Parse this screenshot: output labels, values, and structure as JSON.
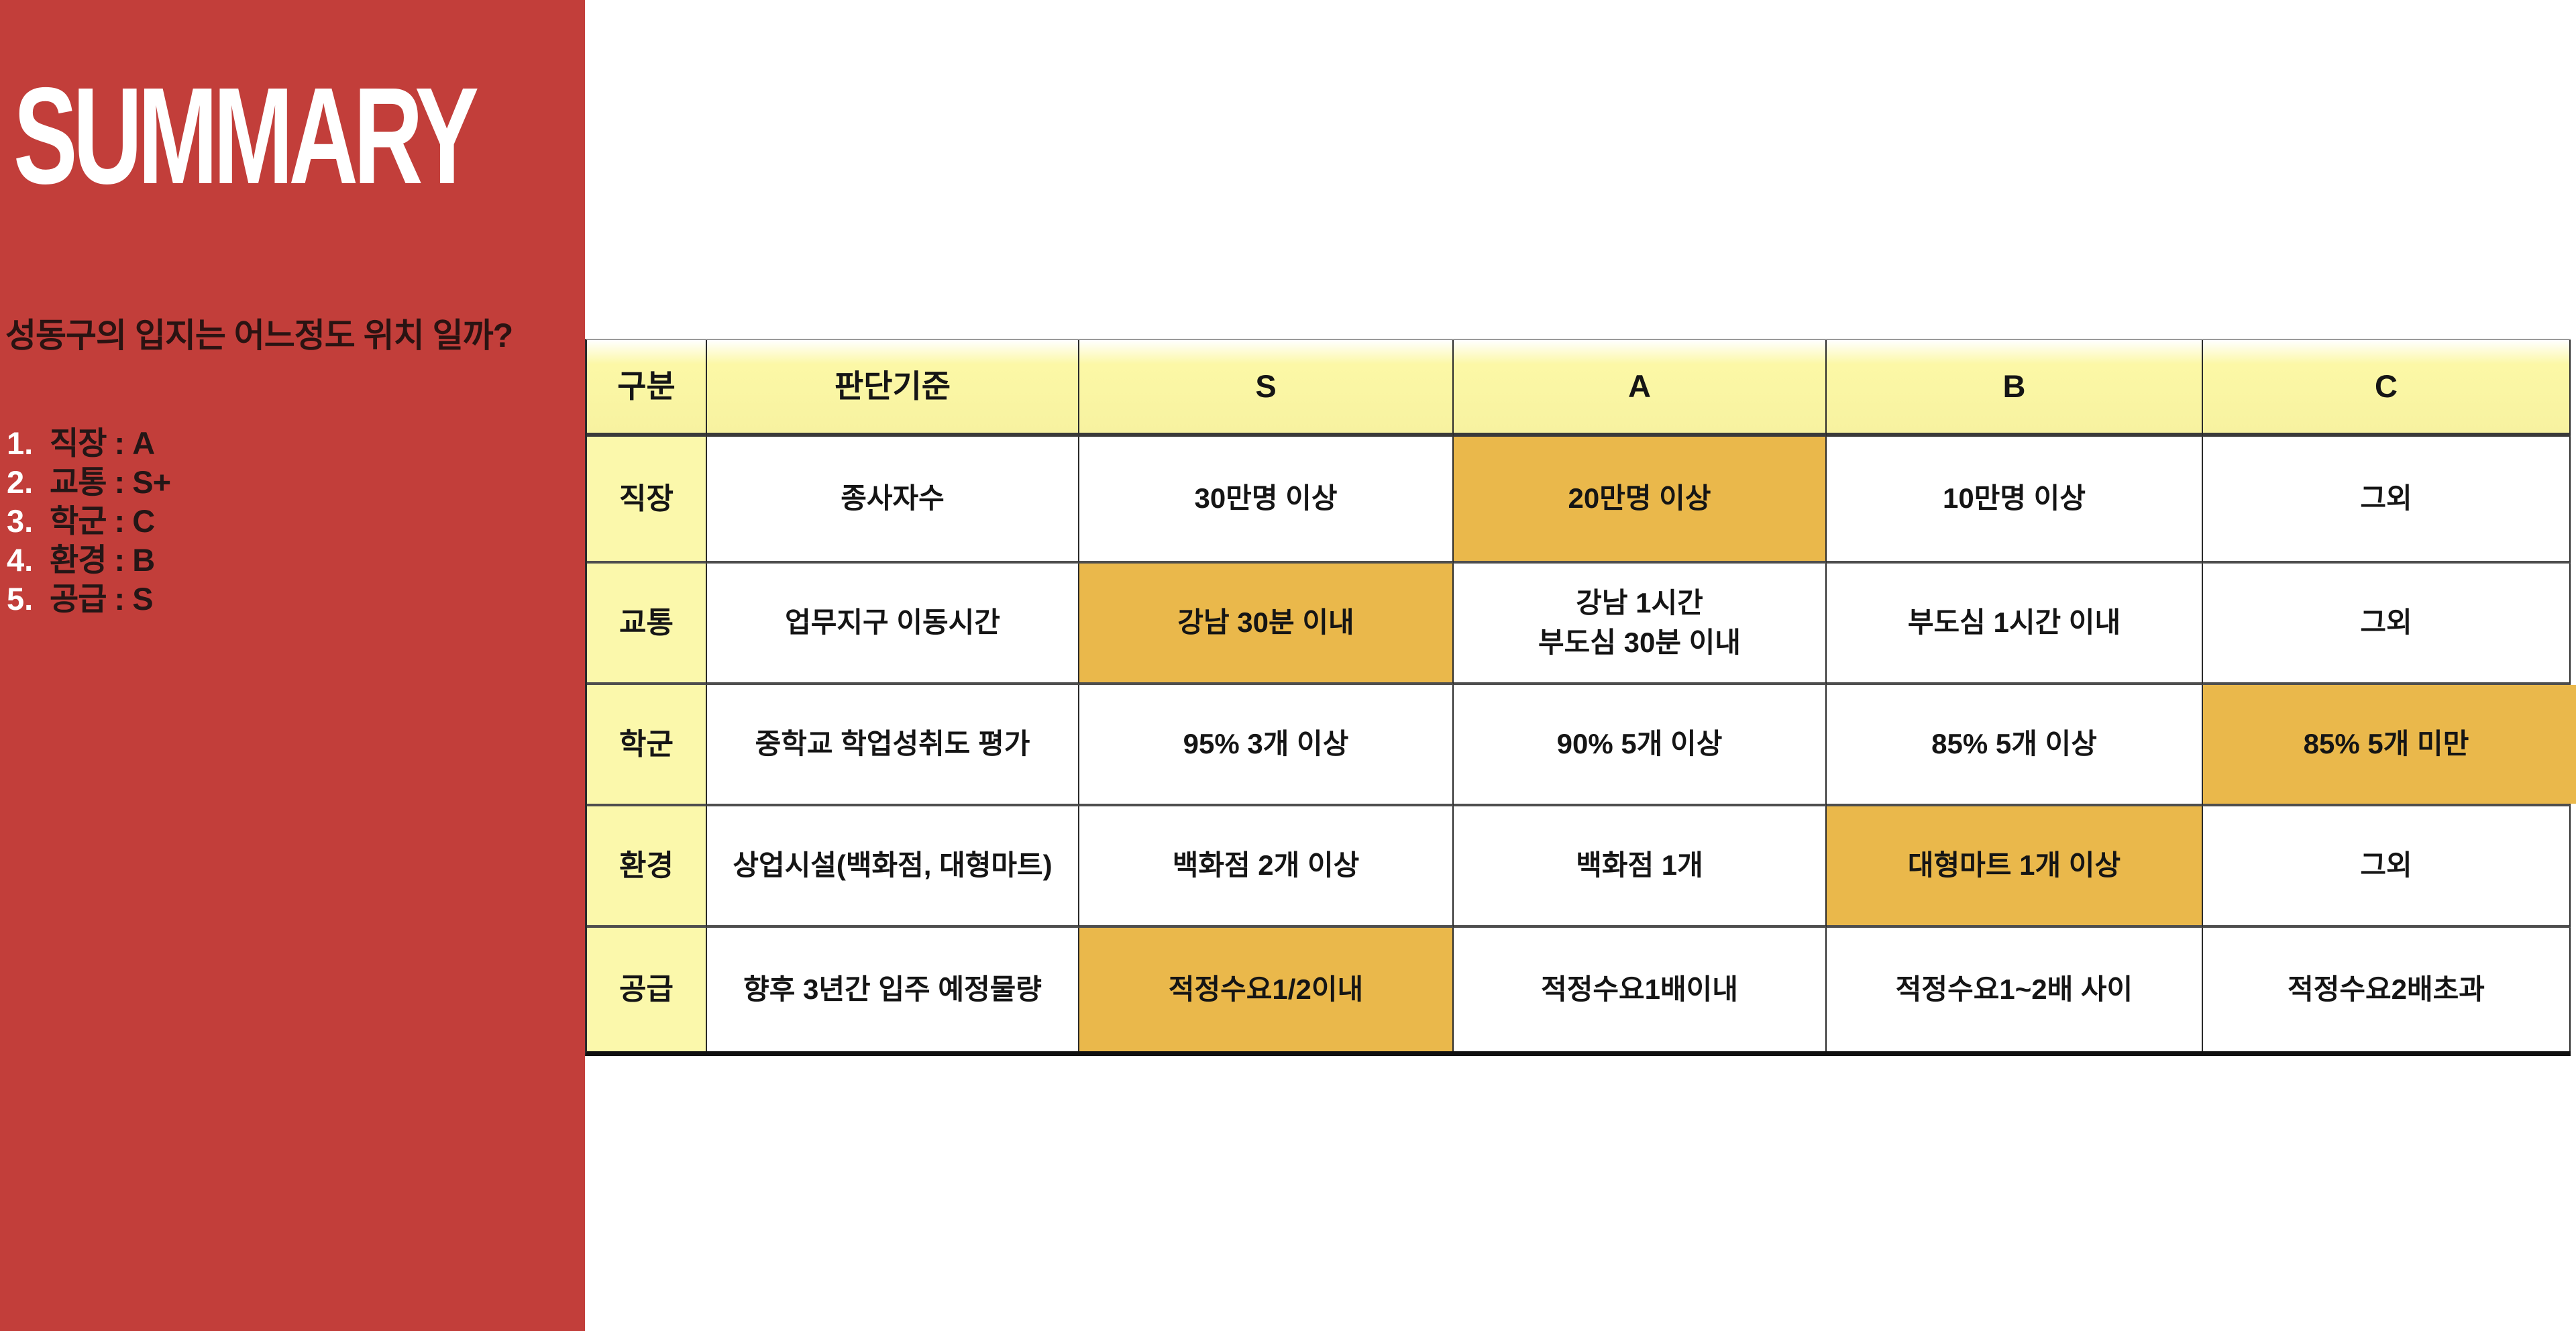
{
  "colors": {
    "sidebar_red": "#c23e3a",
    "header_yellow": "#f9f5a2",
    "row_header_yellow": "#fbf8ab",
    "highlight_orange": "#eab84b",
    "title_white": "#ffffff",
    "table_text": "#151515"
  },
  "sidebar": {
    "title": "SUMMARY",
    "question": "성동구의 입지는 어느정도 위치 일까?",
    "list": [
      {
        "num": "1.",
        "label": "직장 : A"
      },
      {
        "num": "2.",
        "label": "교통 : S+"
      },
      {
        "num": "3.",
        "label": "학군 : C"
      },
      {
        "num": "4.",
        "label": "환경 : B"
      },
      {
        "num": "5.",
        "label": "공급 : S"
      }
    ]
  },
  "table": {
    "columns": [
      "구분",
      "판단기준",
      "S",
      "A",
      "B",
      "C"
    ],
    "rows": [
      {
        "category": "직장",
        "criteria": "종사자수",
        "s": "30만명 이상",
        "a": "20만명 이상",
        "b": "10만명 이상",
        "c": "그외",
        "highlight": "a"
      },
      {
        "category": "교통",
        "criteria": "업무지구 이동시간",
        "s": "강남 30분 이내",
        "a": "강남 1시간\n부도심 30분 이내",
        "b": "부도심 1시간 이내",
        "c": "그외",
        "highlight": "s"
      },
      {
        "category": "학군",
        "criteria": "중학교 학업성취도 평가",
        "s": "95% 3개 이상",
        "a": "90% 5개 이상",
        "b": "85% 5개 이상",
        "c": "85% 5개 미만",
        "highlight": "c"
      },
      {
        "category": "환경",
        "criteria": "상업시설(백화점, 대형마트)",
        "s": "백화점 2개 이상",
        "a": "백화점 1개",
        "b": "대형마트 1개 이상",
        "c": "그외",
        "highlight": "b"
      },
      {
        "category": "공급",
        "criteria": "향후 3년간 입주 예정물량",
        "s": "적정수요1/2이내",
        "a": "적정수요1배이내",
        "b": "적정수요1~2배 사이",
        "c": "적정수요2배초과",
        "highlight": "s"
      }
    ]
  }
}
